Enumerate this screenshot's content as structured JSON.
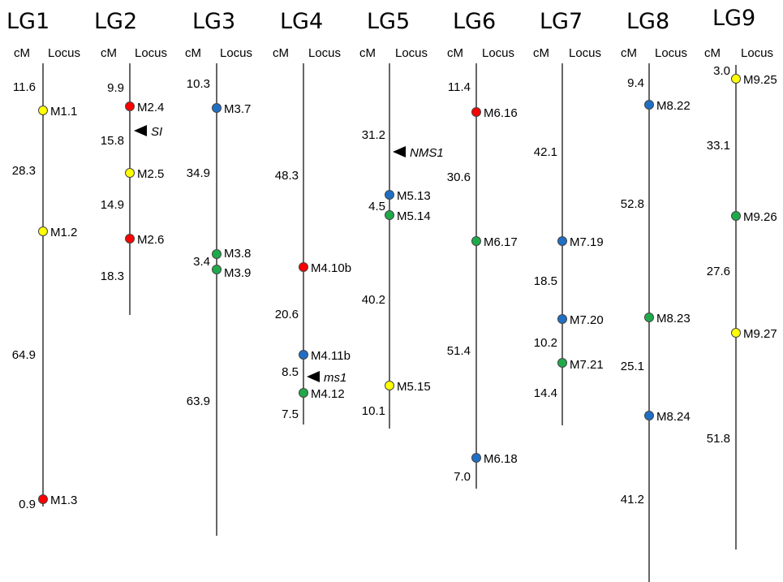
{
  "header_labels": {
    "cm": "cM",
    "locus": "Locus"
  },
  "colors": {
    "yellow": "#ffff00",
    "red": "#ff0000",
    "blue": "#1f6fc5",
    "green": "#1faa4a"
  },
  "linkage_groups": [
    {
      "name": "LG1",
      "distances": [
        "11.6",
        "28.3",
        "64.9",
        "0.9"
      ],
      "markers": [
        {
          "label": "M1.1",
          "color": "yellow"
        },
        {
          "label": "M1.2",
          "color": "yellow"
        },
        {
          "label": "M1.3",
          "color": "red"
        }
      ],
      "traits": []
    },
    {
      "name": "LG2",
      "distances": [
        "9.9",
        "15.8",
        "14.9",
        "18.3"
      ],
      "markers": [
        {
          "label": "M2.4",
          "color": "red"
        },
        {
          "label": "M2.5",
          "color": "yellow"
        },
        {
          "label": "M2.6",
          "color": "red"
        }
      ],
      "traits": [
        {
          "label": "SI"
        }
      ]
    },
    {
      "name": "LG3",
      "distances": [
        "10.3",
        "34.9",
        "3.4",
        "63.9"
      ],
      "markers": [
        {
          "label": "M3.7",
          "color": "blue"
        },
        {
          "label": "M3.8",
          "color": "green"
        },
        {
          "label": "M3.9",
          "color": "green"
        }
      ],
      "traits": []
    },
    {
      "name": "LG4",
      "distances": [
        "48.3",
        "20.6",
        "8.5",
        "7.5"
      ],
      "markers": [
        {
          "label": "M4.10b",
          "color": "red"
        },
        {
          "label": "M4.11b",
          "color": "blue"
        },
        {
          "label": "M4.12",
          "color": "green"
        }
      ],
      "traits": [
        {
          "label": "ms1"
        }
      ]
    },
    {
      "name": "LG5",
      "distances": [
        "31.2",
        "4.5",
        "40.2",
        "10.1"
      ],
      "markers": [
        {
          "label": "M5.13",
          "color": "blue"
        },
        {
          "label": "M5.14",
          "color": "green"
        },
        {
          "label": "M5.15",
          "color": "yellow"
        }
      ],
      "traits": [
        {
          "label": "NMS1"
        }
      ]
    },
    {
      "name": "LG6",
      "distances": [
        "11.4",
        "30.6",
        "51.4",
        "7.0"
      ],
      "markers": [
        {
          "label": "M6.16",
          "color": "red"
        },
        {
          "label": "M6.17",
          "color": "green"
        },
        {
          "label": "M6.18",
          "color": "blue"
        }
      ],
      "traits": []
    },
    {
      "name": "LG7",
      "distances": [
        "42.1",
        "18.5",
        "10.2",
        "14.4"
      ],
      "markers": [
        {
          "label": "M7.19",
          "color": "blue"
        },
        {
          "label": "M7.20",
          "color": "blue"
        },
        {
          "label": "M7.21",
          "color": "green"
        }
      ],
      "traits": []
    },
    {
      "name": "LG8",
      "distances": [
        "9.4",
        "52.8",
        "25.1",
        "41.2"
      ],
      "markers": [
        {
          "label": "M8.22",
          "color": "blue"
        },
        {
          "label": "M8.23",
          "color": "green"
        },
        {
          "label": "M8.24",
          "color": "blue"
        }
      ],
      "traits": []
    },
    {
      "name": "LG9",
      "distances": [
        "3.0",
        "33.1",
        "27.6",
        "51.8"
      ],
      "markers": [
        {
          "label": "M9.25",
          "color": "yellow"
        },
        {
          "label": "M9.26",
          "color": "green"
        },
        {
          "label": "M9.27",
          "color": "yellow"
        }
      ],
      "traits": []
    }
  ]
}
